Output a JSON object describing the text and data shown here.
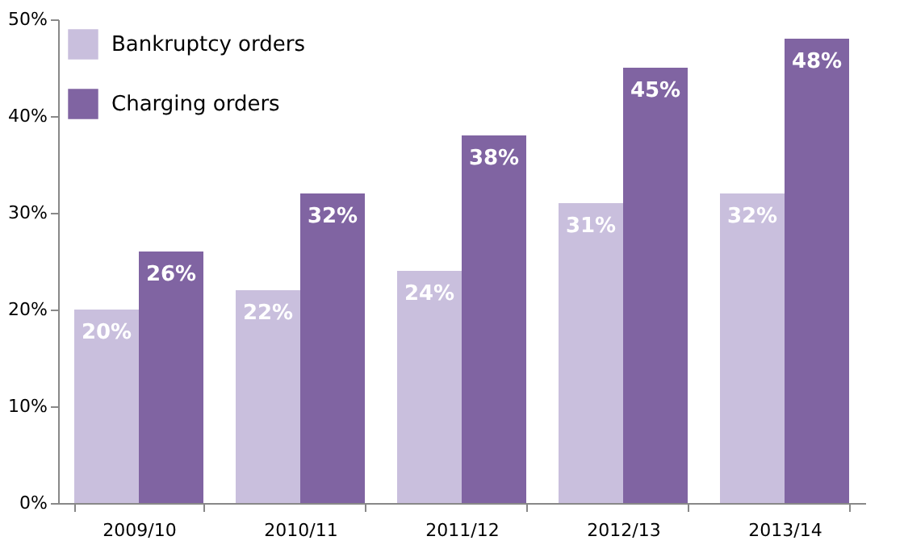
{
  "chart_data": {
    "type": "bar",
    "categories": [
      "2009/10",
      "2010/11",
      "2011/12",
      "2012/13",
      "2013/14"
    ],
    "series": [
      {
        "name": "Bankruptcy orders",
        "color": "#c9bfdd",
        "values": [
          20,
          22,
          24,
          31,
          32
        ],
        "value_labels": [
          "20%",
          "22%",
          "24%",
          "31%",
          "32%"
        ]
      },
      {
        "name": "Charging orders",
        "color": "#8064a2",
        "values": [
          26,
          32,
          38,
          45,
          48
        ],
        "value_labels": [
          "26%",
          "32%",
          "38%",
          "45%",
          "48%"
        ]
      }
    ],
    "ylim": [
      0,
      50
    ],
    "yticks": [
      {
        "value": 0,
        "label": "0%"
      },
      {
        "value": 10,
        "label": "10%"
      },
      {
        "value": 20,
        "label": "20%"
      },
      {
        "value": 30,
        "label": "30%"
      },
      {
        "value": 40,
        "label": "40%"
      },
      {
        "value": 50,
        "label": "50%"
      }
    ],
    "grid": false,
    "legend": "top left"
  }
}
